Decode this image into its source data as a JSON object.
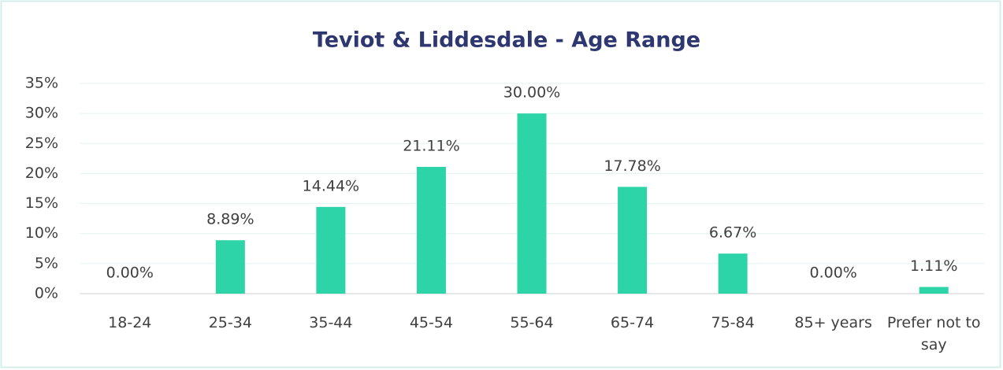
{
  "chart_data": {
    "type": "bar",
    "title": "Teviot & Liddesdale - Age Range",
    "categories": [
      "18-24",
      "25-34",
      "35-44",
      "45-54",
      "55-64",
      "65-74",
      "75-84",
      "85+ years",
      "Prefer not to say"
    ],
    "values": [
      0,
      8.89,
      14.44,
      21.11,
      30,
      17.78,
      6.67,
      0,
      1.11
    ],
    "value_labels": [
      "0.00%",
      "8.89%",
      "14.44%",
      "21.11%",
      "30.00%",
      "17.78%",
      "6.67%",
      "0.00%",
      "1.11%"
    ],
    "color": "#2dd4a8",
    "ylim": [
      0,
      35
    ],
    "yticks": [
      {
        "value": 0,
        "label": "0%"
      },
      {
        "value": 5,
        "label": "5%"
      },
      {
        "value": 10,
        "label": "10%"
      },
      {
        "value": 15,
        "label": "15%"
      },
      {
        "value": 20,
        "label": "20%"
      },
      {
        "value": 25,
        "label": "25%"
      },
      {
        "value": 30,
        "label": "30%"
      },
      {
        "value": 35,
        "label": "35%"
      }
    ],
    "grid": true
  }
}
